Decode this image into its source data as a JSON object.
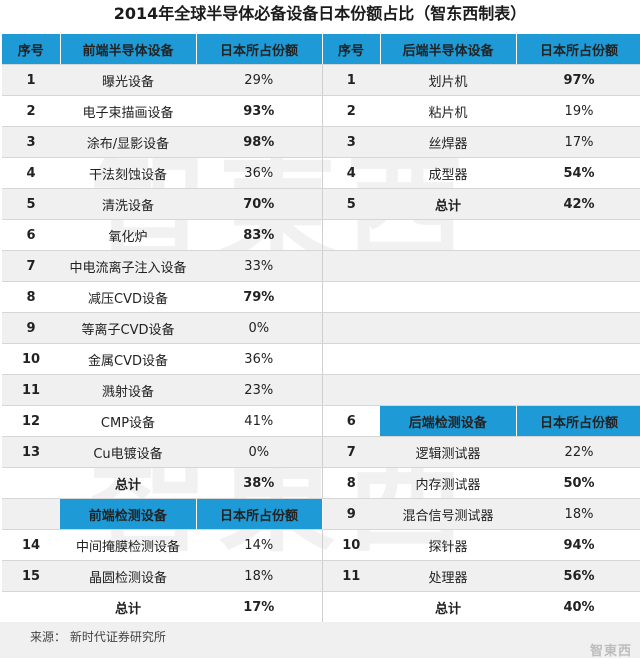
{
  "title": "2014年全球半导体必备设备日本份额占比（智东西制表）",
  "watermark": "智東西",
  "source": "来源：  新时代证券研究所",
  "corner_logo": "智東西",
  "colors": {
    "header_blue": "#1e9ad6",
    "highlight_blue": "#1f9ed9",
    "number_blue": "#1f78c4"
  },
  "headers": {
    "index": "序号",
    "front": "前端半导体设备",
    "share": "日本所占份额",
    "back": "后端半导体设备",
    "front_inspect": "前端检测设备",
    "back_inspect": "后端检测设备"
  },
  "front_equipment": [
    {
      "no": "1",
      "name": "曝光设备",
      "share": "29%"
    },
    {
      "no": "2",
      "name": "电子束描画设备",
      "share": "93%"
    },
    {
      "no": "3",
      "name": "涂布/显影设备",
      "share": "98%"
    },
    {
      "no": "4",
      "name": "干法刻蚀设备",
      "share": "36%"
    },
    {
      "no": "5",
      "name": "清洗设备",
      "share": "70%"
    },
    {
      "no": "6",
      "name": "氧化炉",
      "share": "83%"
    },
    {
      "no": "7",
      "name": "中电流离子注入设备",
      "share": "33%"
    },
    {
      "no": "8",
      "name": "减压CVD设备",
      "share": "79%"
    },
    {
      "no": "9",
      "name": "等离子CVD设备",
      "share": "0%"
    },
    {
      "no": "10",
      "name": "金属CVD设备",
      "share": "36%"
    },
    {
      "no": "11",
      "name": "溅射设备",
      "share": "23%"
    },
    {
      "no": "12",
      "name": "CMP设备",
      "share": "41%"
    },
    {
      "no": "13",
      "name": "Cu电镀设备",
      "share": "0%"
    }
  ],
  "front_total": {
    "label": "总计",
    "share": "38%"
  },
  "front_inspection": [
    {
      "no": "14",
      "name": "中间掩膜检测设备",
      "share": "14%"
    },
    {
      "no": "15",
      "name": "晶圆检测设备",
      "share": "18%"
    }
  ],
  "front_inspection_total": {
    "label": "总计",
    "share": "17%"
  },
  "back_equipment": [
    {
      "no": "1",
      "name": "划片机",
      "share": "97%"
    },
    {
      "no": "2",
      "name": "粘片机",
      "share": "19%"
    },
    {
      "no": "3",
      "name": "丝焊器",
      "share": "17%"
    },
    {
      "no": "4",
      "name": "成型器",
      "share": "54%"
    }
  ],
  "back_total": {
    "no": "5",
    "label": "总计",
    "share": "42%"
  },
  "back_inspect_header_no": "6",
  "back_inspection": [
    {
      "no": "7",
      "name": "逻辑测试器",
      "share": "22%"
    },
    {
      "no": "8",
      "name": "内存测试器",
      "share": "50%"
    },
    {
      "no": "9",
      "name": "混合信号测试器",
      "share": "18%"
    },
    {
      "no": "10",
      "name": "探针器",
      "share": "94%"
    },
    {
      "no": "11",
      "name": "处理器",
      "share": "56%"
    }
  ],
  "back_inspection_total": {
    "label": "总计",
    "share": "40%"
  }
}
